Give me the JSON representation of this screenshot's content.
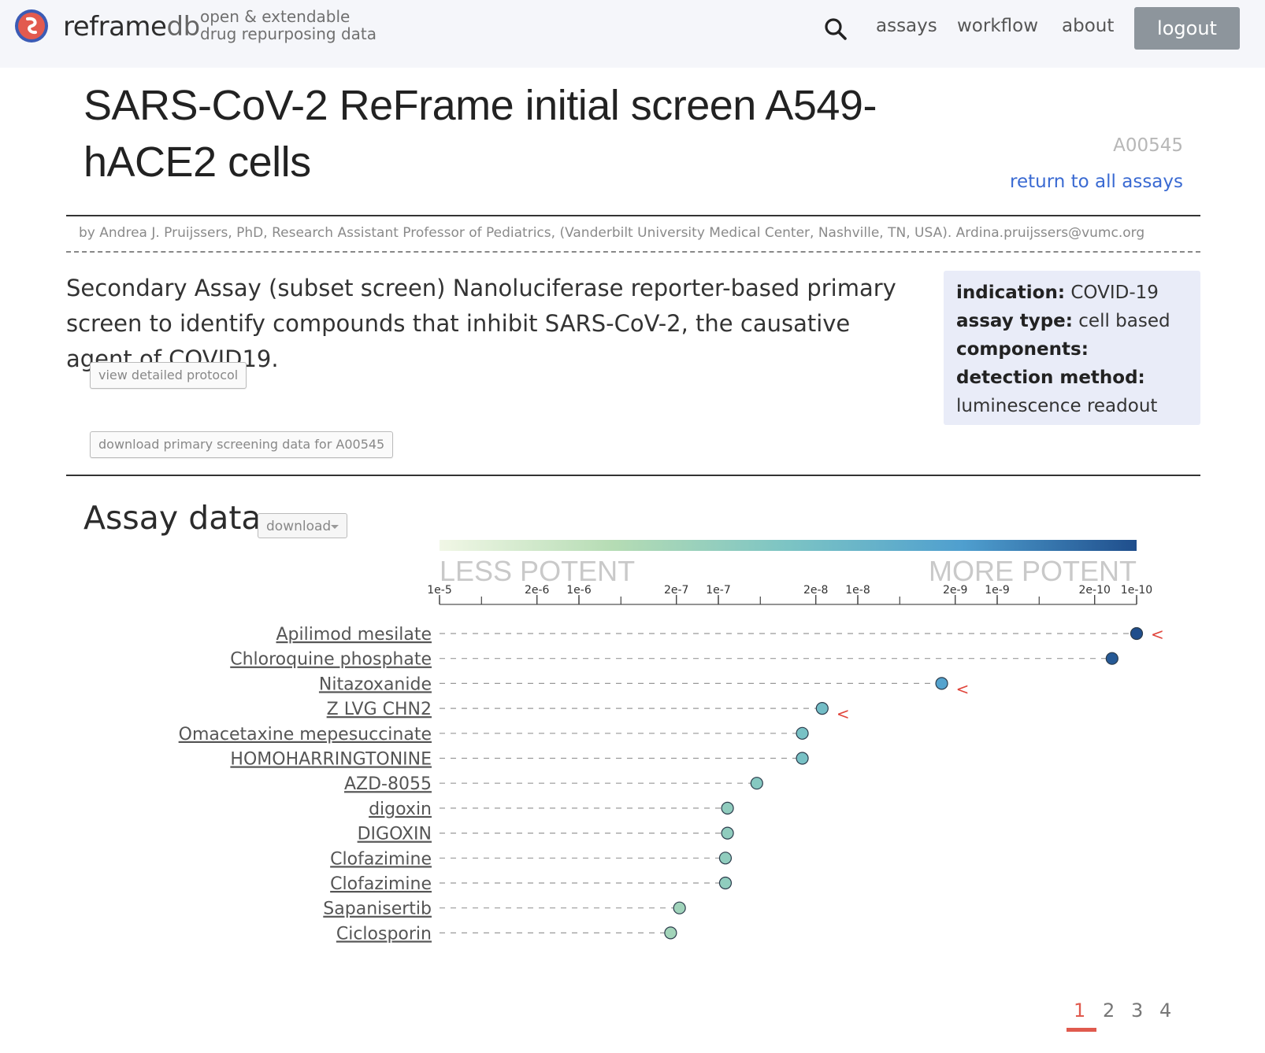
{
  "header": {
    "brand_main": "reframe",
    "brand_suffix": "db",
    "tagline_line1": "open & extendable",
    "tagline_line2": "drug repurposing data",
    "nav": [
      "assays",
      "workflow",
      "about"
    ],
    "logout_label": "logout"
  },
  "assay": {
    "title": "SARS-CoV-2 ReFrame initial screen A549-hACE2 cells",
    "id": "A00545",
    "return_link": "return to all assays",
    "byline": "by Andrea J. Pruijssers, PhD, Research Assistant Professor of Pediatrics, (Vanderbilt University Medical Center, Nashville, TN, USA). Ardina.pruijssers@vumc.org",
    "description": "Secondary Assay (subset screen) Nanoluciferase reporter-based primary screen to identify compounds that inhibit SARS-CoV-2, the causative agent of COVID19.",
    "protocol_button": "view detailed protocol",
    "download_primary_button": "download primary screening data for A00545",
    "info": {
      "indication_label": "indication:",
      "indication_value": "COVID-19",
      "assay_type_label": "assay type:",
      "assay_type_value": "cell based",
      "components_label": "components:",
      "detection_label": "detection method:",
      "detection_value": "luminescence readout"
    }
  },
  "assay_data": {
    "heading": "Assay data",
    "download_label": "download"
  },
  "chart_data": {
    "type": "scatter",
    "scale": "log",
    "gradient_colors": [
      "#f1f7e6",
      "#b5dcb4",
      "#7cc4c4",
      "#4f9fcf",
      "#1f4e8c"
    ],
    "less_label": "LESS POTENT",
    "more_label": "MORE POTENT",
    "tick_labels": [
      {
        "value": 1e-05,
        "text": "1e-5"
      },
      {
        "value": 2e-06,
        "text": "2e-6"
      },
      {
        "value": 1e-06,
        "text": "1e-6"
      },
      {
        "value": 2e-07,
        "text": "2e-7"
      },
      {
        "value": 1e-07,
        "text": "1e-7"
      },
      {
        "value": 2e-08,
        "text": "2e-8"
      },
      {
        "value": 1e-08,
        "text": "1e-8"
      },
      {
        "value": 2e-09,
        "text": "2e-9"
      },
      {
        "value": 1e-09,
        "text": "1e-9"
      },
      {
        "value": 2e-10,
        "text": "2e-10"
      },
      {
        "value": 1e-10,
        "text": "1e-10"
      }
    ],
    "xlim": [
      1e-05,
      1e-10
    ],
    "compounds": [
      {
        "name": "Apilimod mesilate",
        "value": 1e-10,
        "censored": true
      },
      {
        "name": "Chloroquine phosphate",
        "value": 1.5e-10,
        "censored": false
      },
      {
        "name": "Nitazoxanide",
        "value": 2.5e-09,
        "censored": true
      },
      {
        "name": "Z LVG CHN2",
        "value": 1.8e-08,
        "censored": true
      },
      {
        "name": "Omacetaxine mepesuccinate",
        "value": 2.5e-08,
        "censored": false
      },
      {
        "name": "HOMOHARRINGTONINE",
        "value": 2.5e-08,
        "censored": false
      },
      {
        "name": "AZD-8055",
        "value": 5.3e-08,
        "censored": false
      },
      {
        "name": "digoxin",
        "value": 8.6e-08,
        "censored": false
      },
      {
        "name": "DIGOXIN",
        "value": 8.6e-08,
        "censored": false
      },
      {
        "name": "Clofazimine",
        "value": 8.9e-08,
        "censored": false
      },
      {
        "name": "Clofazimine",
        "value": 8.9e-08,
        "censored": false
      },
      {
        "name": "Sapanisertib",
        "value": 1.9e-07,
        "censored": false
      },
      {
        "name": "Ciclosporin",
        "value": 2.2e-07,
        "censored": false
      }
    ]
  },
  "pagination": {
    "pages": [
      "1",
      "2",
      "3",
      "4"
    ],
    "active": "1"
  }
}
